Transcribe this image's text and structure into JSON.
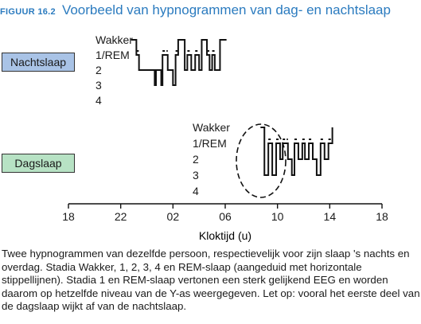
{
  "figure": {
    "label": "FIGUUR 16.2",
    "title": "Voorbeeld van hypnogrammen van dag- en nachtslaap"
  },
  "chart_data": [
    {
      "type": "line",
      "name": "Nachtslaap",
      "y_levels": [
        "Wakker",
        "1/REM",
        "2",
        "3",
        "4"
      ],
      "rem_marker": "dashed line above 1/REM level",
      "x": [
        22.8,
        23.2,
        23.4,
        0.6,
        0.7,
        1.1,
        1.2,
        1.6,
        2.0,
        2.2,
        2.4,
        2.9,
        3.1,
        3.4,
        3.7,
        4.0,
        4.2,
        4.6,
        4.8,
        5.0,
        5.2,
        5.6,
        5.8,
        6.1
      ],
      "y": [
        "Wakker",
        "1/REM",
        "2",
        "3",
        "2",
        "3",
        "1/REM",
        "2",
        "3",
        "1/REM",
        "Wakker",
        "2",
        "1/REM",
        "2",
        "1/REM",
        "2",
        "Wakker",
        "1/REM",
        "2",
        "1/REM",
        "2",
        "Wakker",
        "Wakker",
        "Wakker"
      ]
    },
    {
      "type": "line",
      "name": "Dagslaap",
      "y_levels": [
        "Wakker",
        "1/REM",
        "2",
        "3",
        "4"
      ],
      "rem_marker": "dashed line above 1/REM level",
      "annotation": "dashed ellipse around the first part of day sleep",
      "x": [
        8.7,
        9.0,
        9.3,
        9.6,
        9.9,
        10.2,
        10.4,
        10.8,
        11.1,
        11.3,
        11.6,
        11.9,
        12.1,
        12.4,
        12.7,
        13.0,
        13.3,
        13.6,
        13.9,
        14.2
      ],
      "y": [
        "Wakker",
        "3",
        "1/REM",
        "3",
        "1/REM",
        "2",
        "1/REM",
        "2",
        "3",
        "1/REM",
        "2",
        "1/REM",
        "2",
        "1/REM",
        "2",
        "3",
        "1/REM",
        "2",
        "1/REM",
        "Wakker"
      ]
    }
  ],
  "x_axis": {
    "ticks": [
      "18",
      "22",
      "02",
      "06",
      "10",
      "14",
      "18"
    ],
    "label": "Kloktijd (u)"
  },
  "night": {
    "tag": "Nachtslaap",
    "levels": [
      "Wakker",
      "1/REM",
      "2",
      "3",
      "4"
    ]
  },
  "day": {
    "tag": "Dagslaap",
    "levels": [
      "Wakker",
      "1/REM",
      "2",
      "3",
      "4"
    ]
  },
  "caption": "Twee hypnogrammen van dezelfde persoon, respectievelijk voor zijn slaap 's nachts en overdag. Stadia Wakker, 1, 2, 3, 4 en REM-slaap (aangeduid met horizontale stippellijnen). Stadia 1 en REM-slaap vertonen een sterk gelijkend EEG en worden daarom op hetzelfde niveau van de Y-as weergegeven. Let op: vooral het eerste deel van de dagslaap wijkt af van de nachtslaap.",
  "colors": {
    "title": "#2b7bbf",
    "night_tag": "#a9c3e6",
    "day_tag": "#b7e2c4",
    "line": "#111111"
  }
}
